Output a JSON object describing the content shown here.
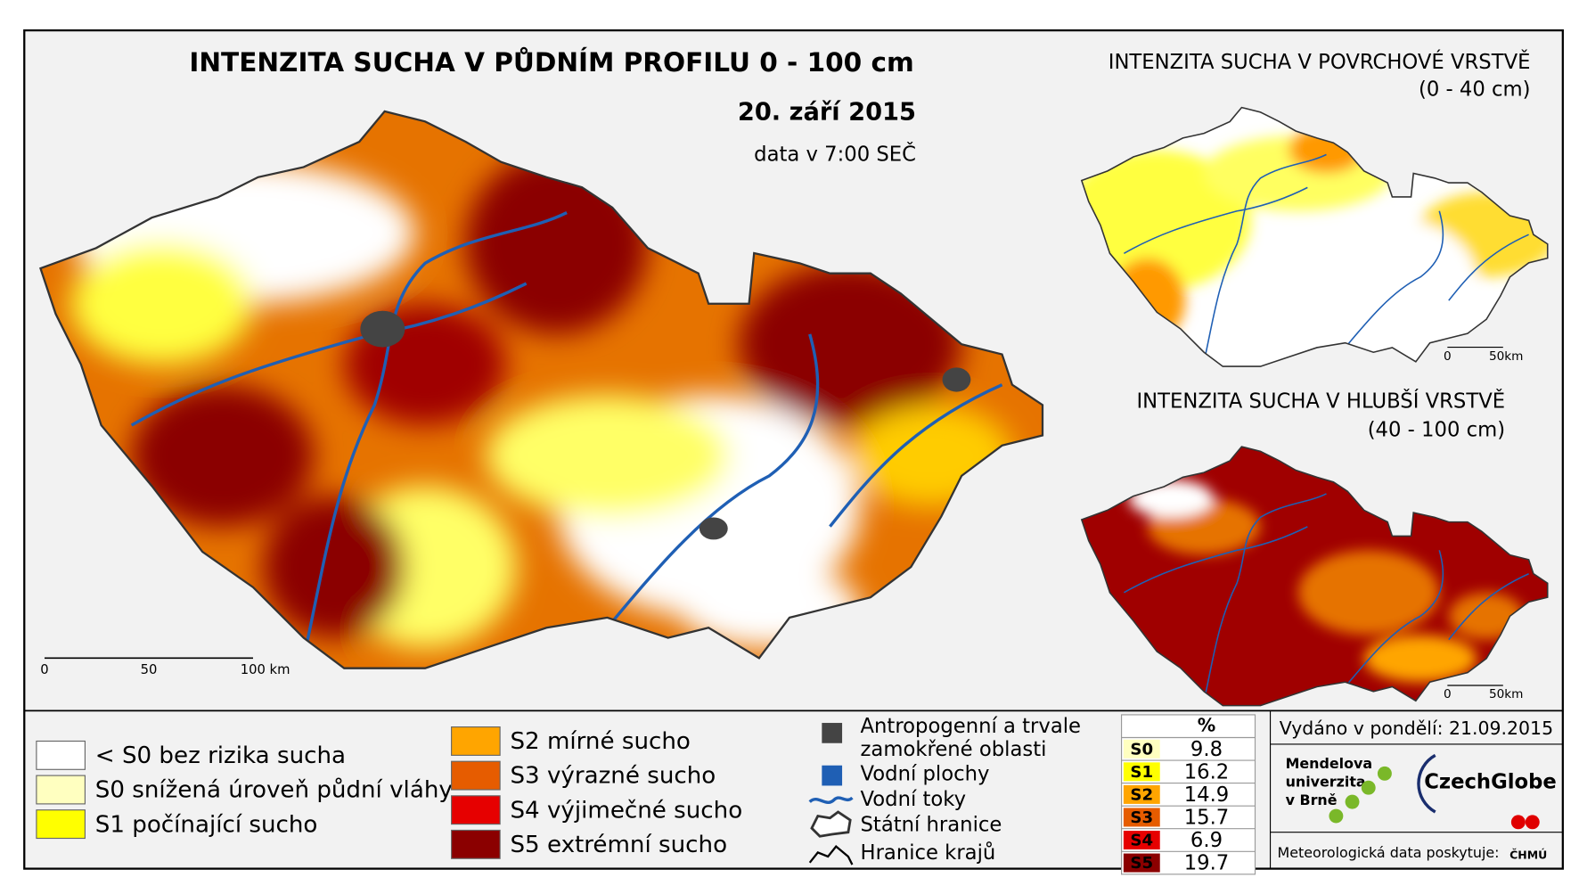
{
  "main_map": {
    "title": "INTENZITA SUCHA V PŮDNÍM PROFILU 0 - 100 cm",
    "date": "20. září 2015",
    "time": "data v 7:00 SEČ",
    "scale": [
      "0",
      "50",
      "100 km"
    ]
  },
  "inset_maps": [
    {
      "title": "INTENZITA SUCHA V POVRCHOVÉ VRSTVĚ",
      "depth": "(0 - 40 cm)",
      "scale": [
        "0",
        "50km"
      ]
    },
    {
      "title": "INTENZITA SUCHA V HLUBŠÍ VRSTVĚ",
      "depth": "(40 - 100 cm)",
      "scale": [
        "0",
        "50km"
      ]
    }
  ],
  "legend": {
    "drought_classes": [
      {
        "label": "< S0 bez rizika sucha",
        "color": "#ffffff"
      },
      {
        "label": "S0 snížená úroveň půdní vláhy",
        "color": "#ffffc0"
      },
      {
        "label": "S1 počínající sucho",
        "color": "#ffff00"
      },
      {
        "label": "S2 mírné sucho",
        "color": "#ffa500"
      },
      {
        "label": "S3 výrazné sucho",
        "color": "#e65c00"
      },
      {
        "label": "S4 výjimečné sucho",
        "color": "#e60000"
      },
      {
        "label": "S5 extrémní sucho",
        "color": "#8b0000"
      }
    ],
    "other": [
      [
        "Antropogenní a trvale",
        "zamokřené oblasti"
      ],
      [
        "Vodní plochy"
      ],
      [
        "Vodní toky"
      ],
      [
        "Státní hranice"
      ],
      [
        "Hranice krajů"
      ]
    ]
  },
  "table": {
    "header": "%",
    "rows": [
      {
        "class": "S0",
        "percent": 9.8,
        "color": "#ffffc0"
      },
      {
        "class": "S1",
        "percent": 16.2,
        "color": "#ffff00"
      },
      {
        "class": "S2",
        "percent": 14.9,
        "color": "#ffa500"
      },
      {
        "class": "S3",
        "percent": 15.7,
        "color": "#e65c00"
      },
      {
        "class": "S4",
        "percent": 6.9,
        "color": "#e60000"
      },
      {
        "class": "S5",
        "percent": 19.7,
        "color": "#8b0000"
      }
    ]
  },
  "issued": "Vydáno v pondělí: 21.09.2015",
  "logos": {
    "mendel": [
      "Mendelova",
      "univerzita",
      "v Brně"
    ],
    "czechglobe": "CzechGlobe",
    "provider": "Meteorologická data poskytuje:",
    "chmu": "ČHMÚ"
  }
}
